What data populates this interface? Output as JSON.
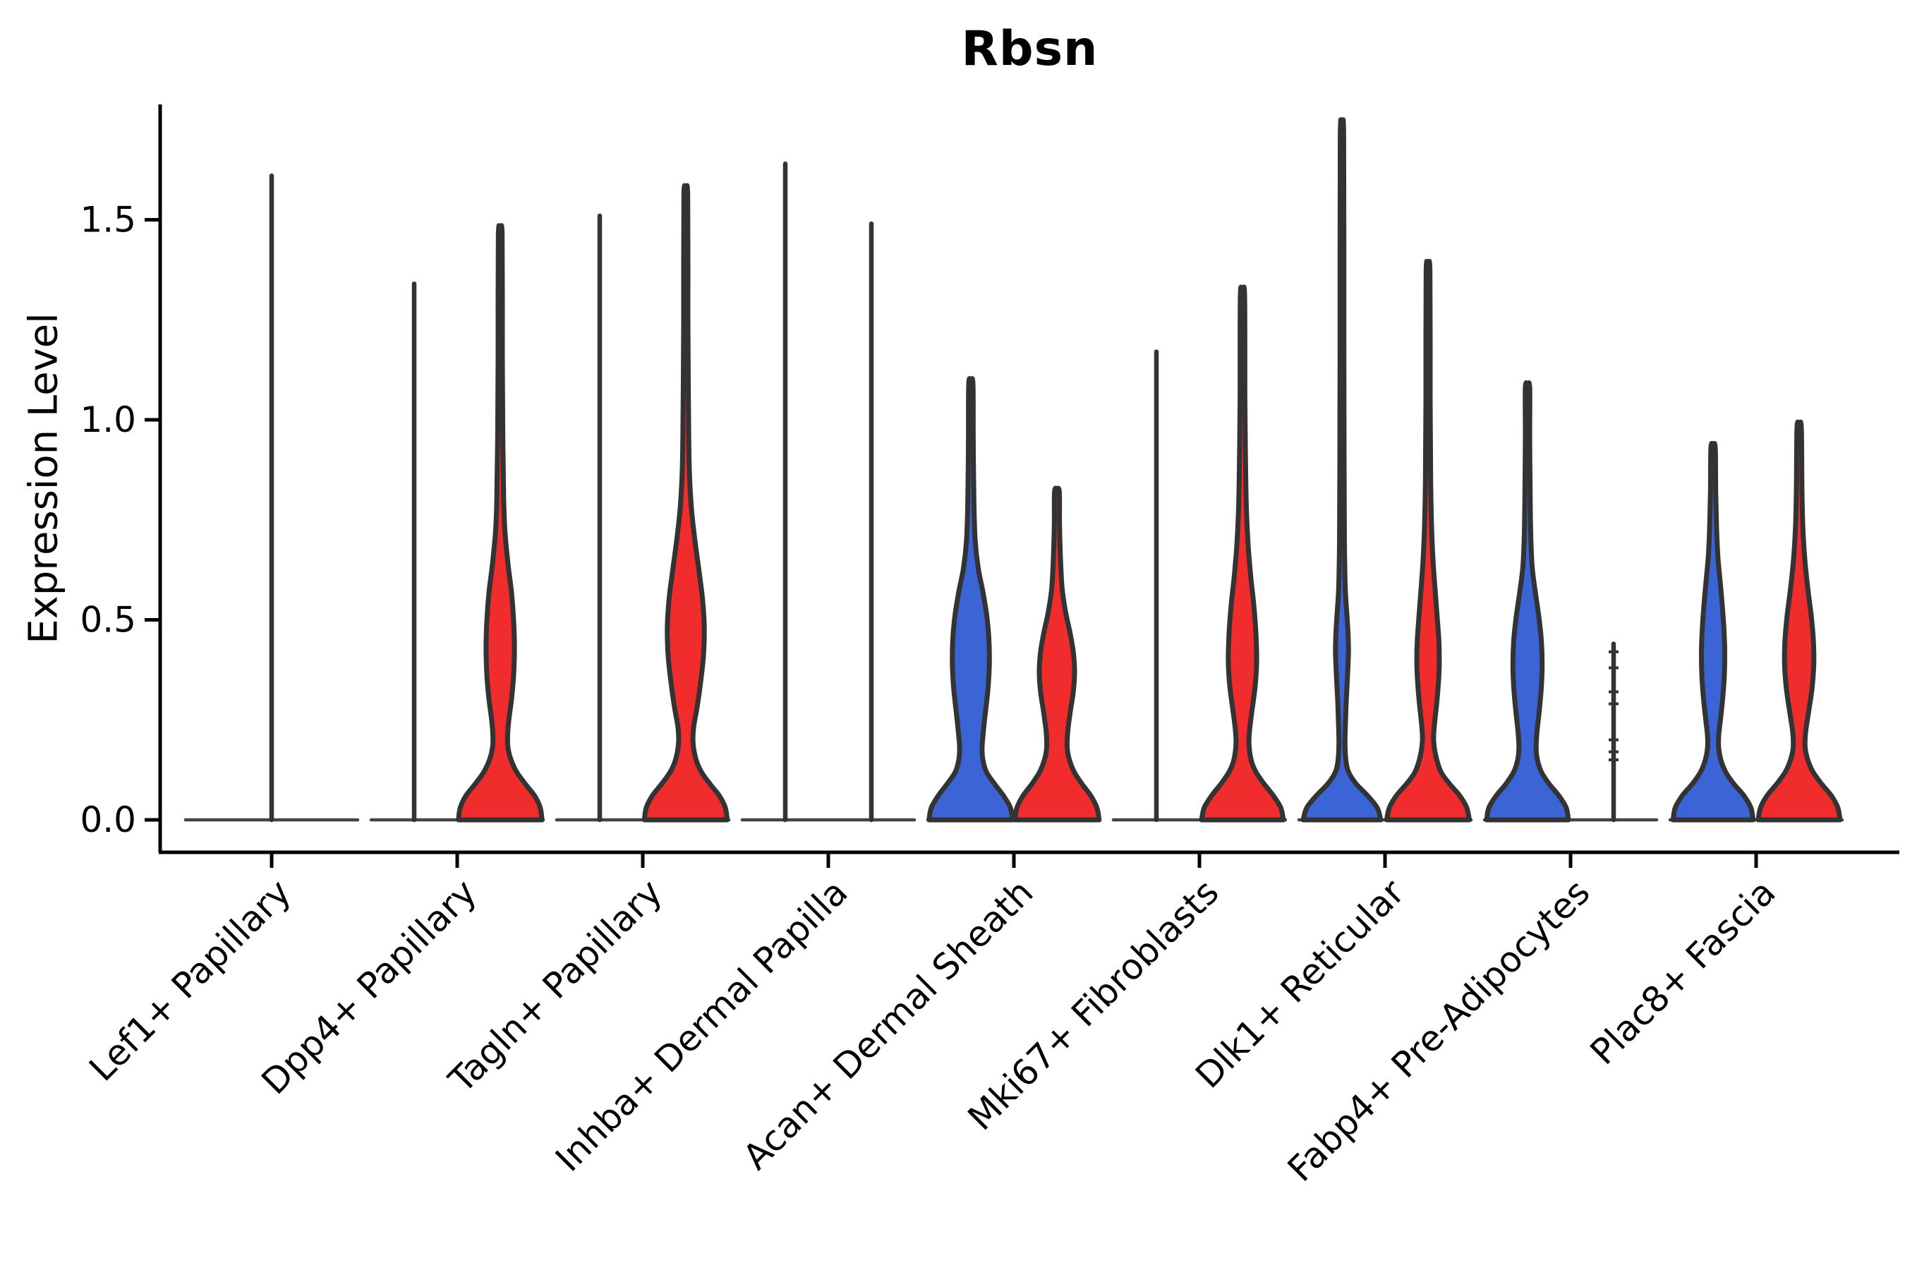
{
  "chart_data": {
    "type": "violin",
    "title": "Rbsn",
    "ylabel": "Expression Level",
    "xlabel": "",
    "yticks": [
      "0.0",
      "0.5",
      "1.0",
      "1.5"
    ],
    "ytick_values": [
      0.0,
      0.5,
      1.0,
      1.5
    ],
    "ylim": [
      0,
      1.78
    ],
    "legend": "none",
    "grid": false,
    "colors": {
      "blue": "#3B65D6",
      "red": "#F02C2C",
      "outline": "#333333",
      "axis": "#000000",
      "baseline": "#444444"
    },
    "categories": [
      "Lef1+ Papillary",
      "Dpp4+ Papillary",
      "Tagln+ Papillary",
      "Inhba+ Dermal Papilla",
      "Acan+ Dermal Sheath",
      "Mki67+ Fibroblasts",
      "Dlk1+ Reticular",
      "Fabp4+ Pre-Adipocytes",
      "Plac8+ Fascia"
    ],
    "groups": [
      {
        "category": "Lef1+ Papillary",
        "violins": [
          {
            "side": "center",
            "style": "flat",
            "color": null,
            "max": 1.61,
            "width_mult": 2
          }
        ]
      },
      {
        "category": "Dpp4+ Papillary",
        "violins": [
          {
            "side": "left",
            "style": "flat",
            "color": null,
            "max": 1.34
          },
          {
            "side": "right",
            "style": "filled",
            "color": "red",
            "max": 1.46,
            "profile": [
              [
                0,
                0.97
              ],
              [
                0.03,
                0.93
              ],
              [
                0.06,
                0.8
              ],
              [
                0.09,
                0.58
              ],
              [
                0.12,
                0.38
              ],
              [
                0.15,
                0.25
              ],
              [
                0.18,
                0.18
              ],
              [
                0.21,
                0.17
              ],
              [
                0.25,
                0.2
              ],
              [
                0.3,
                0.26
              ],
              [
                0.36,
                0.31
              ],
              [
                0.43,
                0.33
              ],
              [
                0.5,
                0.31
              ],
              [
                0.57,
                0.26
              ],
              [
                0.64,
                0.18
              ],
              [
                0.72,
                0.11
              ],
              [
                0.8,
                0.08
              ],
              [
                0.95,
                0.06
              ],
              [
                1.15,
                0.05
              ],
              [
                1.46,
                0.045
              ]
            ]
          }
        ]
      },
      {
        "category": "Tagln+ Papillary",
        "violins": [
          {
            "side": "left",
            "style": "flat",
            "color": null,
            "max": 1.51
          },
          {
            "side": "right",
            "style": "filled",
            "color": "red",
            "max": 1.56,
            "profile": [
              [
                0,
                0.96
              ],
              [
                0.03,
                0.92
              ],
              [
                0.06,
                0.78
              ],
              [
                0.09,
                0.56
              ],
              [
                0.12,
                0.36
              ],
              [
                0.15,
                0.24
              ],
              [
                0.19,
                0.17
              ],
              [
                0.23,
                0.18
              ],
              [
                0.28,
                0.26
              ],
              [
                0.34,
                0.34
              ],
              [
                0.41,
                0.41
              ],
              [
                0.48,
                0.43
              ],
              [
                0.55,
                0.39
              ],
              [
                0.62,
                0.31
              ],
              [
                0.7,
                0.21
              ],
              [
                0.78,
                0.13
              ],
              [
                0.88,
                0.08
              ],
              [
                1.05,
                0.06
              ],
              [
                1.25,
                0.05
              ],
              [
                1.56,
                0.045
              ]
            ]
          }
        ]
      },
      {
        "category": "Inhba+ Dermal Papilla",
        "violins": [
          {
            "side": "left",
            "style": "flat",
            "color": null,
            "max": 1.64
          },
          {
            "side": "right",
            "style": "flat",
            "color": null,
            "max": 1.49
          }
        ]
      },
      {
        "category": "Acan+ Dermal Sheath",
        "violins": [
          {
            "side": "left",
            "style": "filled",
            "color": "blue",
            "max": 1.09,
            "profile": [
              [
                0,
                0.97
              ],
              [
                0.03,
                0.92
              ],
              [
                0.06,
                0.76
              ],
              [
                0.09,
                0.55
              ],
              [
                0.12,
                0.36
              ],
              [
                0.15,
                0.28
              ],
              [
                0.18,
                0.26
              ],
              [
                0.22,
                0.29
              ],
              [
                0.27,
                0.34
              ],
              [
                0.33,
                0.4
              ],
              [
                0.39,
                0.43
              ],
              [
                0.45,
                0.42
              ],
              [
                0.51,
                0.37
              ],
              [
                0.57,
                0.28
              ],
              [
                0.63,
                0.17
              ],
              [
                0.7,
                0.1
              ],
              [
                0.8,
                0.07
              ],
              [
                0.95,
                0.055
              ],
              [
                1.09,
                0.05
              ]
            ]
          },
          {
            "side": "right",
            "style": "filled",
            "color": "red",
            "max": 0.82,
            "profile": [
              [
                0,
                0.98
              ],
              [
                0.03,
                0.93
              ],
              [
                0.06,
                0.79
              ],
              [
                0.09,
                0.58
              ],
              [
                0.12,
                0.4
              ],
              [
                0.15,
                0.29
              ],
              [
                0.18,
                0.24
              ],
              [
                0.22,
                0.25
              ],
              [
                0.27,
                0.31
              ],
              [
                0.32,
                0.38
              ],
              [
                0.37,
                0.41
              ],
              [
                0.42,
                0.38
              ],
              [
                0.47,
                0.3
              ],
              [
                0.52,
                0.2
              ],
              [
                0.58,
                0.12
              ],
              [
                0.66,
                0.08
              ],
              [
                0.74,
                0.06
              ],
              [
                0.82,
                0.055
              ]
            ]
          }
        ]
      },
      {
        "category": "Mki67+ Fibroblasts",
        "violins": [
          {
            "side": "left",
            "style": "flat",
            "color": null,
            "max": 1.17
          },
          {
            "side": "right",
            "style": "filled",
            "color": "red",
            "max": 1.31,
            "profile": [
              [
                0,
                0.95
              ],
              [
                0.03,
                0.89
              ],
              [
                0.06,
                0.72
              ],
              [
                0.09,
                0.5
              ],
              [
                0.12,
                0.31
              ],
              [
                0.15,
                0.2
              ],
              [
                0.19,
                0.15
              ],
              [
                0.23,
                0.17
              ],
              [
                0.28,
                0.23
              ],
              [
                0.34,
                0.3
              ],
              [
                0.4,
                0.33
              ],
              [
                0.47,
                0.31
              ],
              [
                0.54,
                0.26
              ],
              [
                0.61,
                0.19
              ],
              [
                0.69,
                0.13
              ],
              [
                0.78,
                0.09
              ],
              [
                0.9,
                0.07
              ],
              [
                1.05,
                0.055
              ],
              [
                1.31,
                0.05
              ]
            ]
          }
        ]
      },
      {
        "category": "Dlk1+ Reticular",
        "violins": [
          {
            "side": "left",
            "style": "filled",
            "color": "blue",
            "max": 1.71,
            "profile": [
              [
                0,
                0.9
              ],
              [
                0.03,
                0.82
              ],
              [
                0.06,
                0.6
              ],
              [
                0.09,
                0.33
              ],
              [
                0.12,
                0.15
              ],
              [
                0.15,
                0.09
              ],
              [
                0.19,
                0.07
              ],
              [
                0.24,
                0.08
              ],
              [
                0.3,
                0.1
              ],
              [
                0.36,
                0.13
              ],
              [
                0.42,
                0.15
              ],
              [
                0.47,
                0.14
              ],
              [
                0.52,
                0.11
              ],
              [
                0.57,
                0.08
              ],
              [
                0.63,
                0.065
              ],
              [
                0.72,
                0.055
              ],
              [
                0.9,
                0.05
              ],
              [
                1.2,
                0.045
              ],
              [
                1.71,
                0.04
              ]
            ]
          },
          {
            "side": "right",
            "style": "filled",
            "color": "red",
            "max": 1.37,
            "profile": [
              [
                0,
                0.96
              ],
              [
                0.03,
                0.9
              ],
              [
                0.06,
                0.74
              ],
              [
                0.09,
                0.5
              ],
              [
                0.12,
                0.3
              ],
              [
                0.16,
                0.18
              ],
              [
                0.2,
                0.13
              ],
              [
                0.24,
                0.15
              ],
              [
                0.29,
                0.2
              ],
              [
                0.34,
                0.24
              ],
              [
                0.39,
                0.26
              ],
              [
                0.45,
                0.25
              ],
              [
                0.51,
                0.21
              ],
              [
                0.58,
                0.16
              ],
              [
                0.66,
                0.11
              ],
              [
                0.74,
                0.08
              ],
              [
                0.85,
                0.06
              ],
              [
                1.05,
                0.05
              ],
              [
                1.37,
                0.045
              ]
            ]
          }
        ]
      },
      {
        "category": "Fabp4+ Pre-Adipocytes",
        "violins": [
          {
            "side": "left",
            "style": "filled",
            "color": "blue",
            "max": 1.08,
            "profile": [
              [
                0,
                0.95
              ],
              [
                0.03,
                0.9
              ],
              [
                0.06,
                0.73
              ],
              [
                0.09,
                0.5
              ],
              [
                0.12,
                0.32
              ],
              [
                0.15,
                0.23
              ],
              [
                0.18,
                0.2
              ],
              [
                0.22,
                0.22
              ],
              [
                0.27,
                0.27
              ],
              [
                0.33,
                0.32
              ],
              [
                0.39,
                0.34
              ],
              [
                0.45,
                0.32
              ],
              [
                0.51,
                0.26
              ],
              [
                0.57,
                0.18
              ],
              [
                0.63,
                0.11
              ],
              [
                0.71,
                0.075
              ],
              [
                0.82,
                0.06
              ],
              [
                0.95,
                0.05
              ],
              [
                1.08,
                0.05
              ]
            ]
          },
          {
            "side": "right",
            "style": "stick",
            "color": null,
            "max": 0.44,
            "points": [
              0.42,
              0.38,
              0.32,
              0.29,
              0.2,
              0.17,
              0.15
            ]
          }
        ]
      },
      {
        "category": "Plac8+ Fascia",
        "violins": [
          {
            "side": "left",
            "style": "filled",
            "color": "blue",
            "max": 0.93,
            "profile": [
              [
                0,
                0.93
              ],
              [
                0.03,
                0.88
              ],
              [
                0.06,
                0.72
              ],
              [
                0.09,
                0.48
              ],
              [
                0.12,
                0.29
              ],
              [
                0.15,
                0.18
              ],
              [
                0.18,
                0.13
              ],
              [
                0.21,
                0.13
              ],
              [
                0.25,
                0.17
              ],
              [
                0.3,
                0.22
              ],
              [
                0.36,
                0.26
              ],
              [
                0.42,
                0.27
              ],
              [
                0.48,
                0.25
              ],
              [
                0.54,
                0.21
              ],
              [
                0.6,
                0.16
              ],
              [
                0.66,
                0.11
              ],
              [
                0.73,
                0.08
              ],
              [
                0.82,
                0.06
              ],
              [
                0.93,
                0.05
              ]
            ]
          },
          {
            "side": "right",
            "style": "filled",
            "color": "red",
            "max": 0.98,
            "profile": [
              [
                0,
                0.95
              ],
              [
                0.03,
                0.9
              ],
              [
                0.06,
                0.75
              ],
              [
                0.09,
                0.52
              ],
              [
                0.12,
                0.32
              ],
              [
                0.15,
                0.2
              ],
              [
                0.18,
                0.14
              ],
              [
                0.22,
                0.15
              ],
              [
                0.27,
                0.22
              ],
              [
                0.33,
                0.3
              ],
              [
                0.39,
                0.34
              ],
              [
                0.45,
                0.33
              ],
              [
                0.51,
                0.28
              ],
              [
                0.57,
                0.21
              ],
              [
                0.64,
                0.14
              ],
              [
                0.72,
                0.09
              ],
              [
                0.82,
                0.065
              ],
              [
                0.98,
                0.05
              ]
            ]
          }
        ]
      }
    ]
  }
}
